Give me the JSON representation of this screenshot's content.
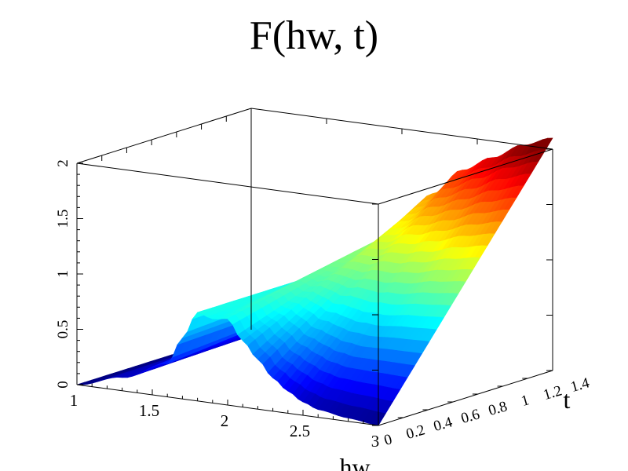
{
  "chart_data": {
    "type": "surface3d",
    "title": "F(hw, t)",
    "xlabel": "hw",
    "ylabel": "t",
    "zlabel": "",
    "xlim": [
      1,
      3
    ],
    "ylim": [
      0,
      1.4
    ],
    "zlim": [
      0,
      2
    ],
    "x_ticks": [
      "1",
      "1.5",
      "2",
      "2.5",
      "3"
    ],
    "y_ticks": [
      "0",
      "0.2",
      "0.4",
      "0.6",
      "0.8",
      "1",
      "1.2",
      "1.4"
    ],
    "z_ticks": [
      "0",
      "0.5",
      "1",
      "1.5",
      "2"
    ],
    "colormap": "jet",
    "grid": false,
    "surface_profile_at_t0": {
      "hw": [
        1.0,
        1.3,
        1.6,
        1.7,
        1.8,
        1.9,
        2.0,
        2.1,
        2.2,
        2.3,
        2.4,
        2.5,
        2.6,
        2.8,
        3.0
      ],
      "F": [
        0.0,
        0.12,
        0.3,
        0.55,
        0.8,
        0.76,
        0.78,
        0.6,
        0.45,
        0.3,
        0.2,
        0.12,
        0.07,
        0.03,
        0.0
      ]
    },
    "surface_profile_at_t_max": {
      "hw": [
        1.0,
        1.3,
        1.6,
        1.8,
        2.0,
        2.2,
        2.4,
        2.6,
        2.8,
        3.0
      ],
      "F": [
        0.0,
        0.15,
        0.45,
        0.8,
        1.1,
        1.45,
        1.7,
        1.85,
        2.0,
        2.1
      ]
    }
  }
}
